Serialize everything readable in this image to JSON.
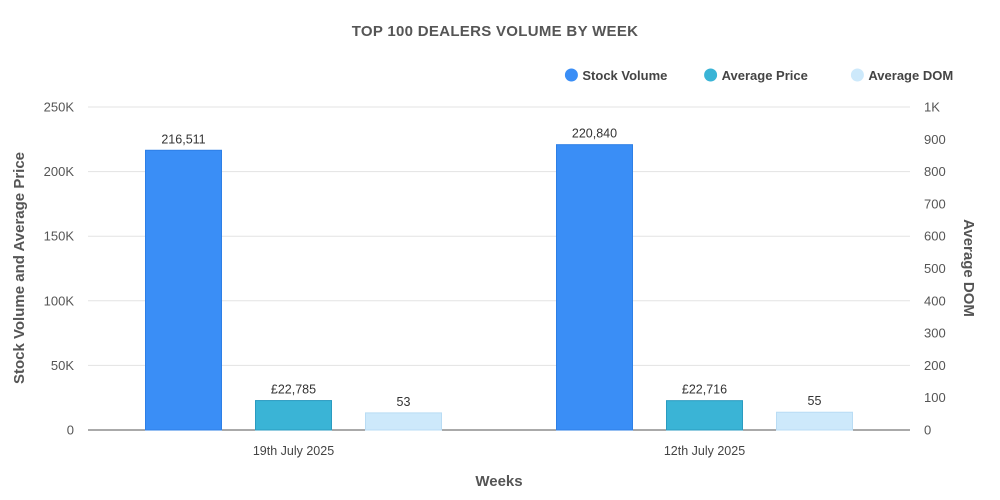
{
  "chart_data": {
    "type": "bar",
    "title": "TOP 100 DEALERS VOLUME BY WEEK",
    "xlabel": "Weeks",
    "ylabel_left": "Stock Volume and Average Price",
    "ylabel_right": "Average DOM",
    "categories": [
      "19th July 2025",
      "12th July 2025"
    ],
    "ylim_left": [
      0,
      250000
    ],
    "ylim_right": [
      0,
      1000
    ],
    "yticks_left": [
      "0",
      "50K",
      "100K",
      "150K",
      "200K",
      "250K"
    ],
    "yticks_right": [
      "0",
      "100",
      "200",
      "300",
      "400",
      "500",
      "600",
      "700",
      "800",
      "900",
      "1K"
    ],
    "grid": true,
    "legend_position": "top-right",
    "series": [
      {
        "name": "Stock Volume",
        "axis": "left",
        "color": "#3a8ef6",
        "values": [
          216511,
          220840
        ],
        "labels": [
          "216,511",
          "220,840"
        ]
      },
      {
        "name": "Average Price",
        "axis": "left",
        "color": "#3ab4d6",
        "values": [
          22785,
          22716
        ],
        "labels": [
          "£22,785",
          "£22,716"
        ]
      },
      {
        "name": "Average DOM",
        "axis": "right",
        "color": "#cde9fb",
        "values": [
          53,
          55
        ],
        "labels": [
          "53",
          "55"
        ]
      }
    ]
  }
}
